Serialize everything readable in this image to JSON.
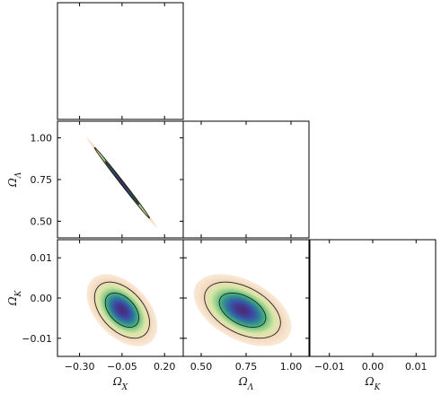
{
  "chart_data": {
    "type": "corner",
    "parameters": [
      {
        "id": "omega_x",
        "label": "Ω",
        "sub": "X",
        "range": [
          -0.43,
          0.31
        ],
        "ticks": [
          -0.3,
          -0.05,
          0.2
        ],
        "tick_labels": [
          "−0.30",
          "−0.05",
          "0.20"
        ],
        "mean": -0.05,
        "sigma": 0.065
      },
      {
        "id": "omega_lambda",
        "label": "Ω",
        "sub": "Λ",
        "range": [
          0.4,
          1.1
        ],
        "ticks": [
          0.5,
          0.75,
          1.0
        ],
        "tick_labels": [
          "0.50",
          "0.75",
          "1.00"
        ],
        "mean": 0.73,
        "sigma": 0.085
      },
      {
        "id": "omega_k",
        "label": "Ω",
        "sub": "K",
        "range": [
          -0.0145,
          0.0145
        ],
        "ticks": [
          -0.01,
          0.0,
          0.01
        ],
        "tick_labels": [
          "−0.01",
          "0.00",
          "0.01"
        ],
        "mean": -0.003,
        "sigma": 0.0028
      }
    ],
    "diagonal": [
      {
        "panel": "omega_x-marginal",
        "type": "line"
      },
      {
        "panel": "omega_lambda-marginal",
        "type": "line"
      },
      {
        "panel": "omega_k-marginal",
        "type": "line"
      }
    ],
    "joint": [
      {
        "panel": "omega_lambda-vs-omega_x",
        "x": "omega_x",
        "y": "omega_lambda",
        "correlation": -0.997
      },
      {
        "panel": "omega_k-vs-omega_x",
        "x": "omega_x",
        "y": "omega_k",
        "correlation": -0.45
      },
      {
        "panel": "omega_k-vs-omega_lambda",
        "x": "omega_lambda",
        "y": "omega_k",
        "correlation": -0.45
      }
    ],
    "colormap": [
      "#fff4ea",
      "#f3d9bd",
      "#d9e6a8",
      "#8fcd88",
      "#3fa882",
      "#2f7b9a",
      "#3a4fa5",
      "#4b2c7c"
    ],
    "grid": false,
    "legend": "none"
  }
}
